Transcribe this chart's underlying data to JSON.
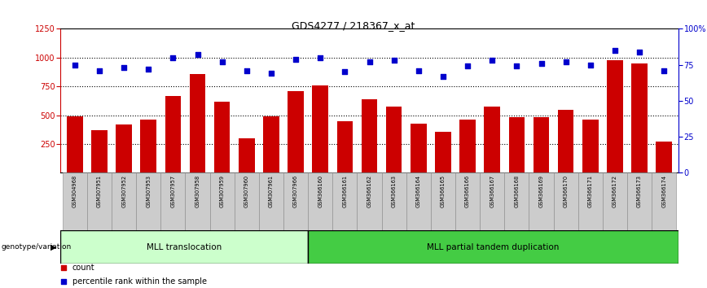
{
  "title": "GDS4277 / 218367_x_at",
  "samples": [
    "GSM304968",
    "GSM307951",
    "GSM307952",
    "GSM307953",
    "GSM307957",
    "GSM307958",
    "GSM307959",
    "GSM307960",
    "GSM307961",
    "GSM307966",
    "GSM366160",
    "GSM366161",
    "GSM366162",
    "GSM366163",
    "GSM366164",
    "GSM366165",
    "GSM366166",
    "GSM366167",
    "GSM366168",
    "GSM366169",
    "GSM366170",
    "GSM366171",
    "GSM366172",
    "GSM366173",
    "GSM366174"
  ],
  "counts": [
    490,
    370,
    420,
    465,
    670,
    860,
    620,
    300,
    490,
    710,
    760,
    450,
    640,
    575,
    430,
    355,
    460,
    575,
    480,
    480,
    550,
    460,
    975,
    950,
    270
  ],
  "percentiles": [
    75,
    71,
    73,
    72,
    80,
    82,
    77,
    71,
    69,
    79,
    80,
    70,
    77,
    78,
    71,
    67,
    74,
    78,
    74,
    76,
    77,
    75,
    85,
    84,
    71
  ],
  "group1_label": "MLL translocation",
  "group1_count": 10,
  "group2_label": "MLL partial tandem duplication",
  "group2_count": 15,
  "group_label": "genotype/variation",
  "bar_color": "#cc0000",
  "dot_color": "#0000cc",
  "ylim_left": [
    0,
    1250
  ],
  "ylim_right": [
    0,
    100
  ],
  "yticks_left": [
    250,
    500,
    750,
    1000,
    1250
  ],
  "yticks_right": [
    0,
    25,
    50,
    75,
    100
  ],
  "grid_vals": [
    250,
    500,
    750,
    1000
  ],
  "legend_count_label": "count",
  "legend_pct_label": "percentile rank within the sample",
  "bg_color": "#ffffff",
  "tick_label_bg": "#cccccc",
  "group1_color": "#ccffcc",
  "group2_color": "#44cc44"
}
